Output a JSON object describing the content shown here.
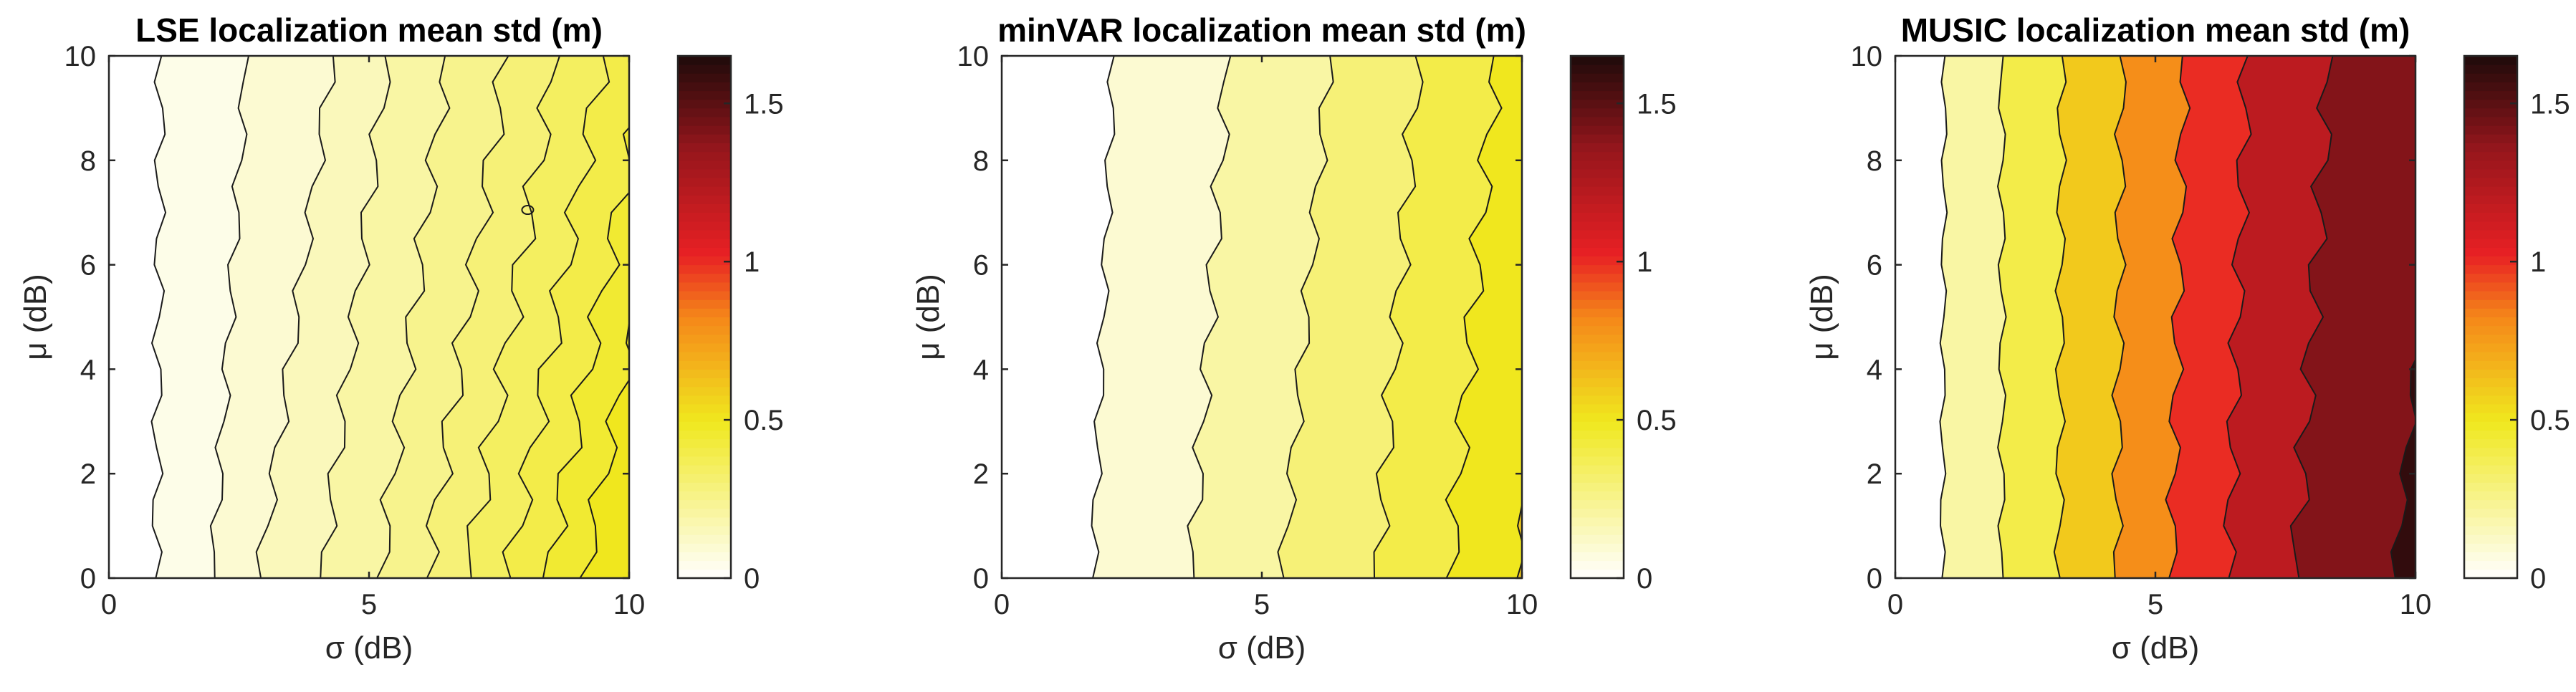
{
  "chart_data": [
    {
      "type": "contourf",
      "title": "LSE localization mean std (m)",
      "xlabel": "σ (dB)",
      "ylabel": "μ (dB)",
      "xlim": [
        0,
        10
      ],
      "ylim": [
        0,
        10
      ],
      "xticks": [
        0,
        5,
        10
      ],
      "yticks": [
        0,
        2,
        4,
        6,
        8,
        10
      ],
      "colorbar": {
        "range": [
          0,
          1.65
        ],
        "ticks": [
          0,
          0.5,
          1,
          1.5
        ],
        "colormap": "hot (inverted)"
      },
      "level_step": 0.05,
      "contour_lines": [
        {
          "level": 0.05,
          "sigma_at_mu0": 0.9,
          "sigma_at_mu10": 1.0,
          "wobble": 0.12
        },
        {
          "level": 0.1,
          "sigma_at_mu0": 2.0,
          "sigma_at_mu10": 2.65,
          "wobble": 0.12
        },
        {
          "level": 0.15,
          "sigma_at_mu0": 2.9,
          "sigma_at_mu10": 4.3,
          "wobble": 0.14
        },
        {
          "level": 0.2,
          "sigma_at_mu0": 4.1,
          "sigma_at_mu10": 5.35,
          "wobble": 0.16
        },
        {
          "level": 0.25,
          "sigma_at_mu0": 5.2,
          "sigma_at_mu10": 6.5,
          "wobble": 0.18
        },
        {
          "level": 0.3,
          "sigma_at_mu0": 6.1,
          "sigma_at_mu10": 7.65,
          "wobble": 0.2
        },
        {
          "level": 0.35,
          "sigma_at_mu0": 6.9,
          "sigma_at_mu10": 8.6,
          "wobble": 0.22
        },
        {
          "level": 0.4,
          "sigma_at_mu0": 7.7,
          "sigma_at_mu10": 9.5,
          "wobble": 0.22
        },
        {
          "level": 0.45,
          "sigma_at_mu0": 8.4,
          "sigma_at_mu10": 10.4,
          "wobble": 0.22
        },
        {
          "level": 0.5,
          "sigma_at_mu0": 9.1,
          "sigma_at_mu10": 11.2,
          "wobble": 0.2
        }
      ]
    },
    {
      "type": "contourf",
      "title": "minVAR localization mean std (m)",
      "xlabel": "σ (dB)",
      "ylabel": "μ (dB)",
      "xlim": [
        0,
        10
      ],
      "ylim": [
        0,
        10
      ],
      "xticks": [
        0,
        5,
        10
      ],
      "yticks": [
        0,
        2,
        4,
        6,
        8,
        10
      ],
      "colorbar": {
        "range": [
          0,
          1.65
        ],
        "ticks": [
          0,
          0.5,
          1,
          1.5
        ],
        "colormap": "hot (inverted)"
      },
      "level_step": 0.1,
      "contour_lines": [
        {
          "level": 0.1,
          "sigma_at_mu0": 1.75,
          "sigma_at_mu10": 2.15,
          "wobble": 0.1
        },
        {
          "level": 0.2,
          "sigma_at_mu0": 3.65,
          "sigma_at_mu10": 4.35,
          "wobble": 0.16
        },
        {
          "level": 0.3,
          "sigma_at_mu0": 5.4,
          "sigma_at_mu10": 6.3,
          "wobble": 0.14
        },
        {
          "level": 0.4,
          "sigma_at_mu0": 7.2,
          "sigma_at_mu10": 8.0,
          "wobble": 0.18
        },
        {
          "level": 0.5,
          "sigma_at_mu0": 8.6,
          "sigma_at_mu10": 9.5,
          "wobble": 0.2
        },
        {
          "level": 0.6,
          "sigma_at_mu0": 9.9,
          "sigma_at_mu10": 11.0,
          "wobble": 0.12
        }
      ]
    },
    {
      "type": "contourf",
      "title": "MUSIC localization mean std (m)",
      "xlabel": "σ (dB)",
      "ylabel": "μ (dB)",
      "xlim": [
        0,
        10
      ],
      "ylim": [
        0,
        10
      ],
      "xticks": [
        0,
        5,
        10
      ],
      "yticks": [
        0,
        2,
        4,
        6,
        8,
        10
      ],
      "colorbar": {
        "range": [
          0,
          1.65
        ],
        "ticks": [
          0,
          0.5,
          1,
          1.5
        ],
        "colormap": "hot (inverted)"
      },
      "level_step": 0.2,
      "contour_lines": [
        {
          "level": 0.2,
          "sigma_at_mu0": 0.9,
          "sigma_at_mu10": 0.95,
          "wobble": 0.06
        },
        {
          "level": 0.4,
          "sigma_at_mu0": 2.05,
          "sigma_at_mu10": 2.05,
          "wobble": 0.08
        },
        {
          "level": 0.6,
          "sigma_at_mu0": 3.15,
          "sigma_at_mu10": 3.2,
          "wobble": 0.1
        },
        {
          "level": 0.8,
          "sigma_at_mu0": 4.25,
          "sigma_at_mu10": 4.35,
          "wobble": 0.12
        },
        {
          "level": 1.0,
          "sigma_at_mu0": 5.3,
          "sigma_at_mu10": 5.55,
          "wobble": 0.14
        },
        {
          "level": 1.2,
          "sigma_at_mu0": 6.4,
          "sigma_at_mu10": 6.75,
          "wobble": 0.16
        },
        {
          "level": 1.4,
          "sigma_at_mu0": 7.7,
          "sigma_at_mu10": 8.35,
          "wobble": 0.2
        },
        {
          "level": 1.6,
          "sigma_at_mu0": 9.6,
          "sigma_at_mu10": 10.6,
          "wobble": 0.12
        }
      ]
    }
  ]
}
